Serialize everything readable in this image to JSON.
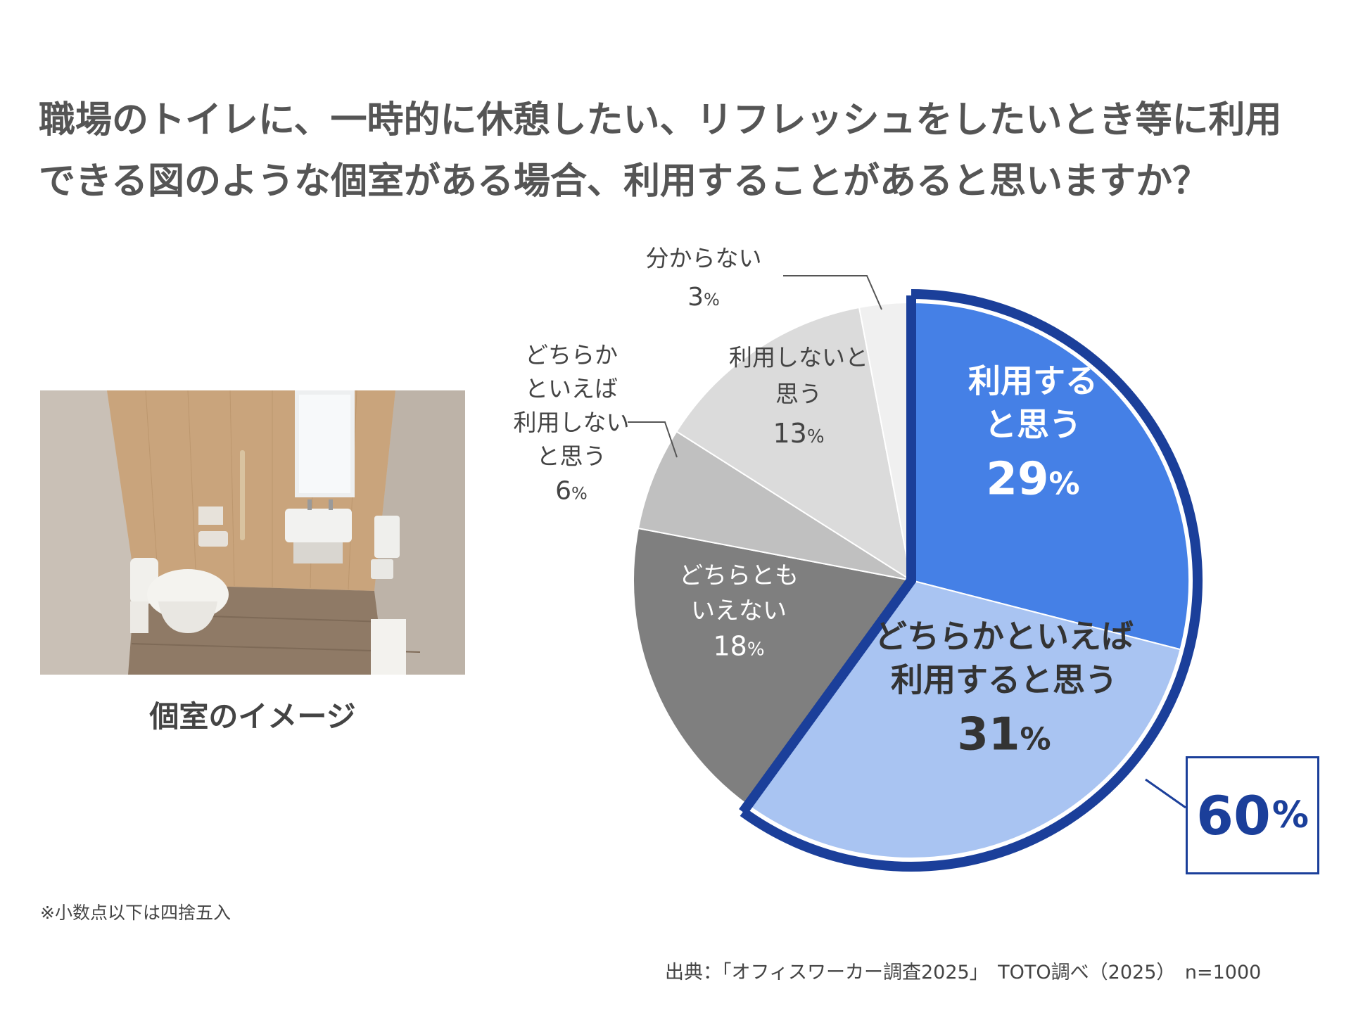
{
  "title_lines": [
    "職場のトイレに、一時的に休憩したい、リフレッシュをしたいとき等に利用",
    "できる図のような個室がある場合、利用することがあると思いますか？"
  ],
  "photo_caption": "個室のイメージ",
  "note": "※小数点以下は四捨五入",
  "source": "出典：「オフィスワーカー調査2025」　TOTO調べ（2025）　n=1000",
  "callout": {
    "value": "60",
    "unit": "%"
  },
  "colors": {
    "use": "#4580E6",
    "rather_use": "#A9C4F2",
    "neutral": "#7F7F7F",
    "rather_not": "#C0C0C0",
    "not_use": "#DBDBDB",
    "unknown": "#F0F0F0",
    "highlight_border": "#1B3F9A"
  },
  "chart_data": {
    "type": "pie",
    "start": "12 o'clock",
    "direction": "clockwise",
    "unit": "%",
    "slices": [
      {
        "label_lines": [
          "利用する",
          "と思う"
        ],
        "value": 29,
        "value_text": "29",
        "color": "#4580E6",
        "label_color": "#ffffff",
        "bold": true
      },
      {
        "label_lines": [
          "どちらかといえば",
          "利用すると思う"
        ],
        "value": 31,
        "value_text": "31",
        "color": "#A9C4F2",
        "label_color": "#333333",
        "bold": true
      },
      {
        "label_lines": [
          "どちらとも",
          "いえない"
        ],
        "value": 18,
        "value_text": "18",
        "color": "#7F7F7F",
        "label_color": "#ffffff",
        "bold": false
      },
      {
        "label_lines": [
          "どちらか",
          "といえば",
          "利用しない",
          "と思う"
        ],
        "value": 6,
        "value_text": "6",
        "color": "#C0C0C0",
        "label_color": "#444444",
        "bold": false,
        "outside": true
      },
      {
        "label_lines": [
          "利用しないと",
          "思う"
        ],
        "value": 13,
        "value_text": "13",
        "color": "#DBDBDB",
        "label_color": "#444444",
        "bold": false
      },
      {
        "label_lines": [
          "分からない"
        ],
        "value": 3,
        "value_text": "3",
        "color": "#F0F0F0",
        "label_color": "#444444",
        "bold": false,
        "outside": true
      }
    ],
    "highlight": {
      "slices": [
        0,
        1
      ],
      "total": 60
    }
  }
}
